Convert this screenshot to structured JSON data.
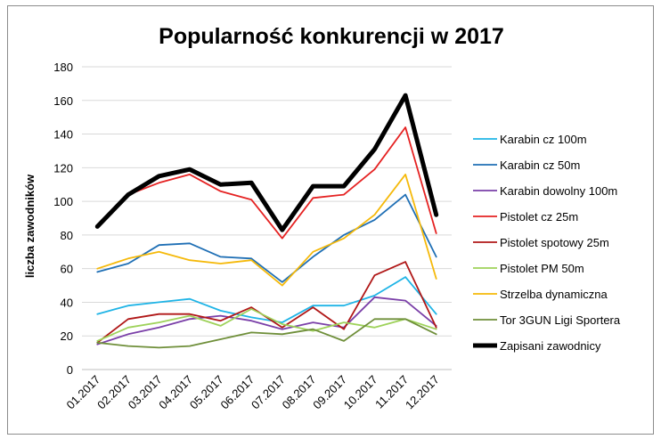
{
  "chart_data": {
    "type": "line",
    "title": "Popularność konkurencji w 2017",
    "xlabel": "",
    "ylabel": "liczba zawodników",
    "ylim": [
      0,
      180
    ],
    "yticks": [
      0,
      20,
      40,
      60,
      80,
      100,
      120,
      140,
      160,
      180
    ],
    "grid": true,
    "legend": "right",
    "x": [
      "01.2017",
      "02.2017",
      "03.2017",
      "04.2017",
      "05.2017",
      "06.2017",
      "07.2017",
      "08.2017",
      "09.2017",
      "10.2017",
      "11.2017",
      "12.2017"
    ],
    "series": [
      {
        "name": "Karabin cz 100m",
        "color": "#1fb4e6",
        "values": [
          33,
          38,
          40,
          42,
          35,
          31,
          28,
          38,
          38,
          44,
          55,
          33
        ]
      },
      {
        "name": "Karabin cz 50m",
        "color": "#1f6fb5",
        "values": [
          58,
          63,
          74,
          75,
          67,
          66,
          52,
          67,
          80,
          89,
          104,
          67
        ]
      },
      {
        "name": "Karabin dowolny 100m",
        "color": "#7a3fa8",
        "values": [
          15,
          21,
          25,
          30,
          32,
          29,
          24,
          28,
          25,
          43,
          41,
          26
        ]
      },
      {
        "name": "Pistolet cz 25m",
        "color": "#e52222",
        "values": [
          85,
          104,
          111,
          116,
          106,
          101,
          78,
          102,
          104,
          119,
          144,
          81
        ]
      },
      {
        "name": "Pistolet spotowy 25m",
        "color": "#b01717",
        "values": [
          16,
          30,
          33,
          33,
          29,
          37,
          25,
          37,
          24,
          56,
          64,
          25
        ]
      },
      {
        "name": "Pistolet PM 50m",
        "color": "#9ed25a",
        "values": [
          17,
          25,
          28,
          32,
          26,
          36,
          27,
          23,
          28,
          25,
          30,
          24
        ]
      },
      {
        "name": "Strzelba dynamiczna",
        "color": "#f5b90a",
        "values": [
          60,
          66,
          70,
          65,
          63,
          65,
          50,
          70,
          78,
          92,
          116,
          54
        ]
      },
      {
        "name": "Tor 3GUN Ligi Sportera",
        "color": "#6f8f3a",
        "values": [
          16,
          14,
          13,
          14,
          18,
          22,
          21,
          24,
          17,
          30,
          30,
          21
        ]
      },
      {
        "name": "Zapisani zawodnicy",
        "color": "#000000",
        "values": [
          85,
          104,
          115,
          119,
          110,
          111,
          83,
          109,
          109,
          131,
          163,
          92
        ]
      }
    ]
  }
}
